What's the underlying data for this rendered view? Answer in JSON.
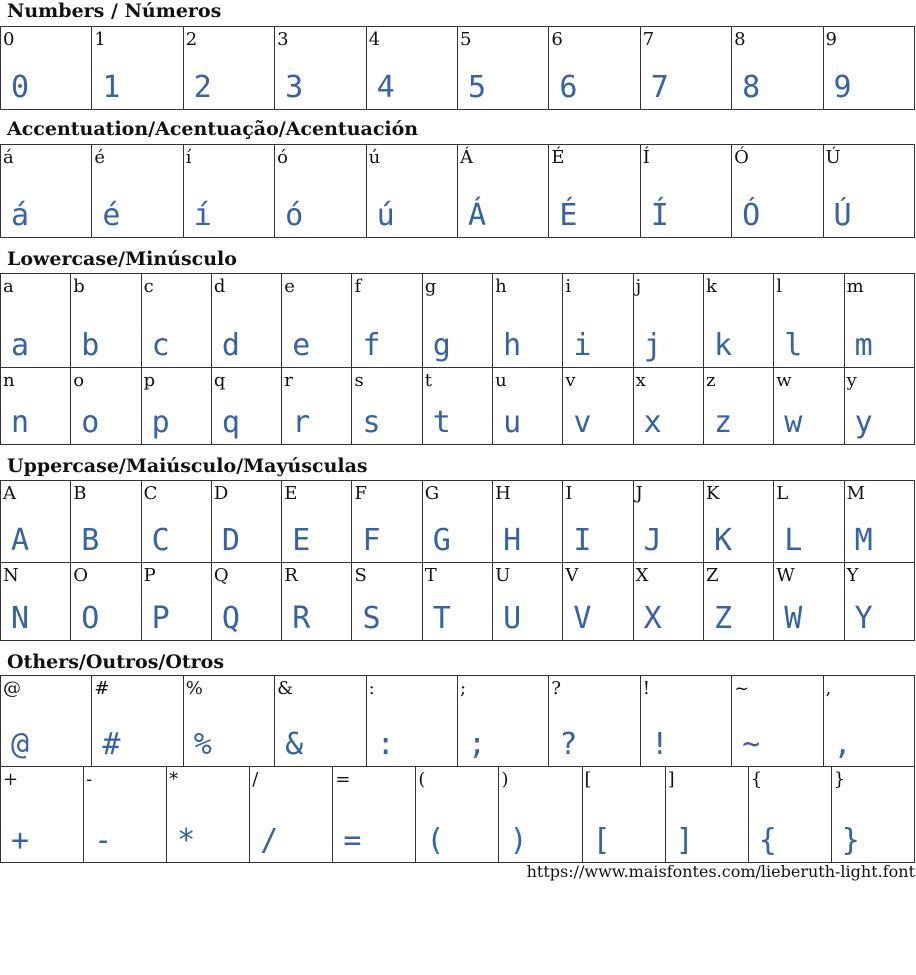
{
  "sections": [
    {
      "title": "Numbers / Números",
      "rows": [
        [
          "0",
          "1",
          "2",
          "3",
          "4",
          "5",
          "6",
          "7",
          "8",
          "9"
        ]
      ]
    },
    {
      "title": "Accentuation/Acentuação/Acentuación",
      "rows": [
        [
          "á",
          "é",
          "í",
          "ó",
          "ú",
          "Á",
          "É",
          "Í",
          "Ó",
          "Ú"
        ]
      ]
    },
    {
      "title": "Lowercase/Minúsculo",
      "rows": [
        [
          "a",
          "b",
          "c",
          "d",
          "e",
          "f",
          "g",
          "h",
          "i",
          "j",
          "k",
          "l",
          "m"
        ],
        [
          "n",
          "o",
          "p",
          "q",
          "r",
          "s",
          "t",
          "u",
          "v",
          "x",
          "z",
          "w",
          "y"
        ]
      ]
    },
    {
      "title": "Uppercase/Maiúsculo/Mayúsculas",
      "rows": [
        [
          "A",
          "B",
          "C",
          "D",
          "E",
          "F",
          "G",
          "H",
          "I",
          "J",
          "K",
          "L",
          "M"
        ],
        [
          "N",
          "O",
          "P",
          "Q",
          "R",
          "S",
          "T",
          "U",
          "V",
          "X",
          "Z",
          "W",
          "Y"
        ]
      ]
    },
    {
      "title": "Others/Outros/Otros",
      "rows": [
        [
          "@",
          "#",
          "%",
          "&",
          ":",
          ";",
          "?",
          "!",
          "~",
          ","
        ],
        [
          "+",
          "-",
          "*",
          "/",
          "=",
          "(",
          ")",
          "[",
          "]",
          "{",
          "}"
        ]
      ]
    }
  ],
  "footer": {
    "url": "https://www.maisfontes.com/lieberuth-light.font"
  },
  "colors": {
    "glyph": "#3563a3"
  }
}
